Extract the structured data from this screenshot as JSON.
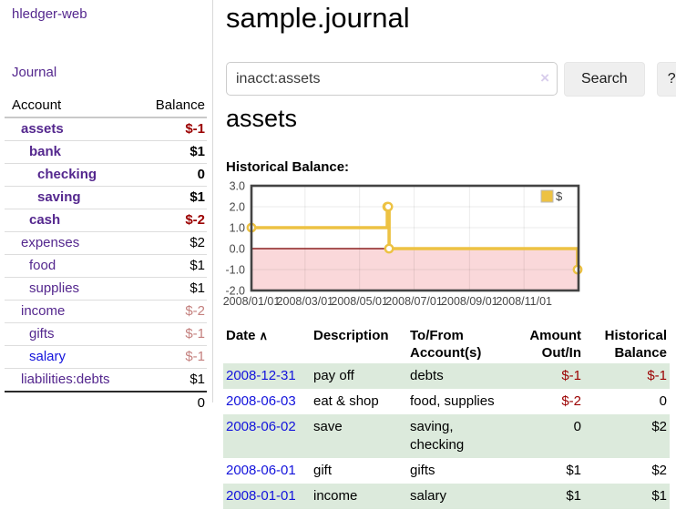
{
  "app": {
    "brand": "hledger-web",
    "nav_journal": "Journal"
  },
  "sidebar": {
    "accounts_header": {
      "account": "Account",
      "balance": "Balance"
    },
    "accounts": [
      {
        "name": "assets",
        "depth": 1,
        "balance": "$-1",
        "neg": "strong",
        "matched": true
      },
      {
        "name": "bank",
        "depth": 2,
        "balance": "$1",
        "neg": "none",
        "matched": true
      },
      {
        "name": "checking",
        "depth": 3,
        "balance": "0",
        "neg": "none",
        "matched": true
      },
      {
        "name": "saving",
        "depth": 3,
        "balance": "$1",
        "neg": "none",
        "matched": true
      },
      {
        "name": "cash",
        "depth": 2,
        "balance": "$-2",
        "neg": "strong",
        "matched": true
      },
      {
        "name": "expenses",
        "depth": 1,
        "balance": "$2",
        "neg": "none",
        "matched": false
      },
      {
        "name": "food",
        "depth": 2,
        "balance": "$1",
        "neg": "none",
        "matched": false
      },
      {
        "name": "supplies",
        "depth": 2,
        "balance": "$1",
        "neg": "none",
        "matched": false
      },
      {
        "name": "income",
        "depth": 1,
        "balance": "$-2",
        "neg": "soft",
        "matched": false
      },
      {
        "name": "gifts",
        "depth": 2,
        "balance": "$-1",
        "neg": "soft",
        "matched": false
      },
      {
        "name": "salary",
        "depth": 2,
        "balance": "$-1",
        "neg": "soft",
        "matched": false,
        "link": "blue"
      },
      {
        "name": "liabilities:debts",
        "depth": 1,
        "balance": "$1",
        "neg": "none",
        "matched": false
      }
    ],
    "total": "0"
  },
  "header": {
    "title": "sample.journal"
  },
  "search": {
    "value": "inacct:assets",
    "clear_icon": "×",
    "button": "Search",
    "help": "?"
  },
  "account_page": {
    "heading": "assets",
    "chart_label": "Historical Balance:"
  },
  "chart_data": {
    "type": "line",
    "title": "Historical Balance:",
    "series": [
      {
        "name": "$",
        "color": "#EDC243",
        "step": true,
        "points": [
          [
            "2008-01-01",
            1
          ],
          [
            "2008-06-01",
            2
          ],
          [
            "2008-06-02",
            2
          ],
          [
            "2008-06-03",
            0
          ],
          [
            "2008-12-31",
            -1
          ]
        ]
      }
    ],
    "x_range": [
      "2008-01-01",
      "2009-01-01"
    ],
    "y_range": [
      -2,
      3
    ],
    "x_ticks": [
      {
        "t": "2008-01-01",
        "label": "2008/01/01"
      },
      {
        "t": "2008-03-01",
        "label": "2008/03/01"
      },
      {
        "t": "2008-05-01",
        "label": "2008/05/01"
      },
      {
        "t": "2008-07-01",
        "label": "2008/07/01"
      },
      {
        "t": "2008-09-01",
        "label": "2008/09/01"
      },
      {
        "t": "2008-11-01",
        "label": "2008/11/01"
      }
    ],
    "y_ticks": [
      {
        "v": 3,
        "label": "3.0"
      },
      {
        "v": 2,
        "label": "2.0"
      },
      {
        "v": 1,
        "label": "1.0"
      },
      {
        "v": 0,
        "label": "0.0"
      },
      {
        "v": -1,
        "label": "-1.0"
      },
      {
        "v": -2,
        "label": "-2.0"
      }
    ],
    "grid": true,
    "legend_position": "top-right",
    "negative_region_color": "#FAD8DA",
    "zero_line_color": "#8B2020",
    "border_color": "#434343"
  },
  "register": {
    "columns": [
      "Date",
      "Description",
      "To/From Account(s)",
      "Amount Out/In",
      "Historical Balance"
    ],
    "sort": {
      "column": "Date",
      "icon": "∧"
    },
    "rows": [
      {
        "date": "2008-12-31",
        "description": "pay off",
        "accounts": [
          "debts"
        ],
        "amount": "$-1",
        "amount_neg": true,
        "balance": "$-1",
        "balance_neg": true
      },
      {
        "date": "2008-06-03",
        "description": "eat & shop",
        "accounts": [
          "food",
          "supplies"
        ],
        "amount": "$-2",
        "amount_neg": true,
        "balance": "0",
        "balance_neg": false
      },
      {
        "date": "2008-06-02",
        "description": "save",
        "accounts": [
          "saving",
          "checking"
        ],
        "amount": "0",
        "amount_neg": false,
        "balance": "$2",
        "balance_neg": false
      },
      {
        "date": "2008-06-01",
        "description": "gift",
        "accounts": [
          "gifts"
        ],
        "amount": "$1",
        "amount_neg": false,
        "balance": "$2",
        "balance_neg": false
      },
      {
        "date": "2008-01-01",
        "description": "income",
        "accounts": [
          "salary"
        ],
        "amount": "$1",
        "amount_neg": false,
        "balance": "$1",
        "balance_neg": false
      }
    ]
  }
}
